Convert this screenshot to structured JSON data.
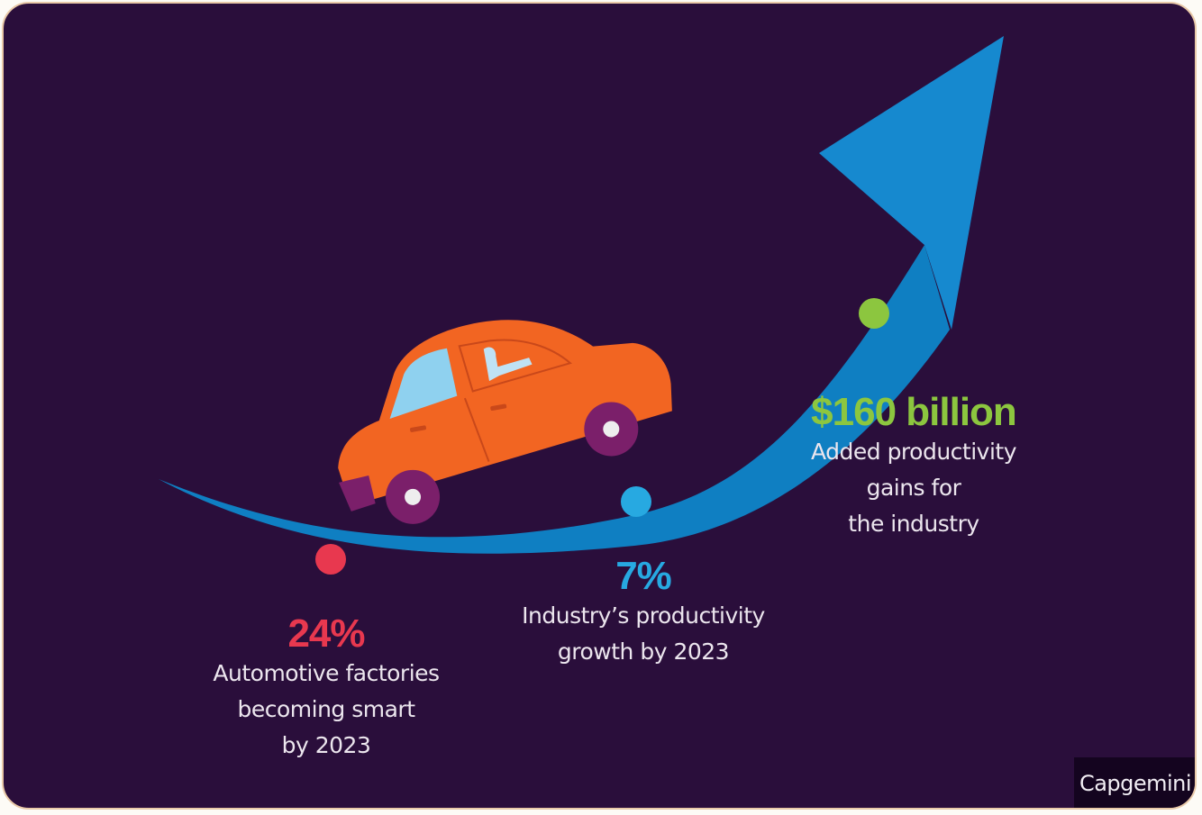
{
  "stats": [
    {
      "value": "24%",
      "description": "Automotive factories\nbecoming smart\nby 2023",
      "color": "#e8384f"
    },
    {
      "value": "7%",
      "description": "Industry’s productivity\ngrowth by 2023",
      "color": "#27a9e1"
    },
    {
      "value": "$160 billion",
      "description": "Added productivity\ngains for\nthe industry",
      "color": "#8cc63f"
    }
  ],
  "brand": "Capgemini",
  "colors": {
    "background": "#2a0e3b",
    "arrow": "#0f7fc2",
    "car_body": "#f26522",
    "wheel": "#7b1f6a"
  }
}
